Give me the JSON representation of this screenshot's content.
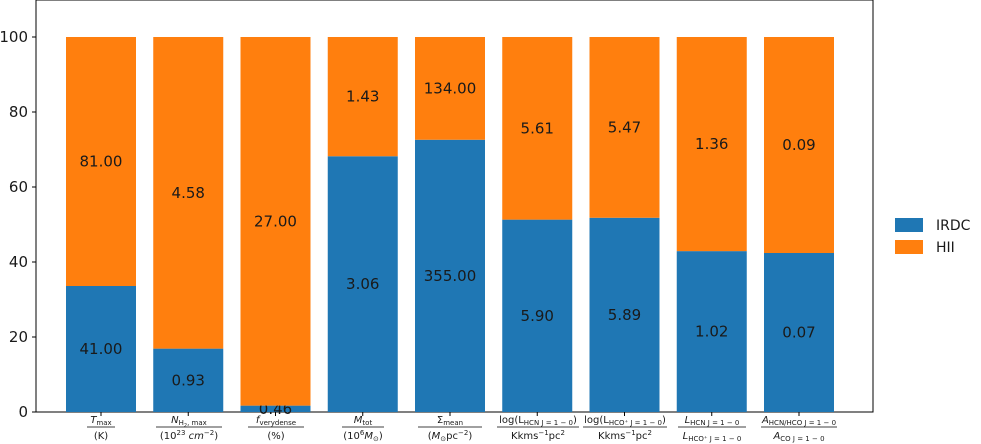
{
  "chart_data": {
    "type": "bar",
    "stacked": true,
    "normalized_to": 100,
    "title": "",
    "xlabel": "",
    "ylabel": "",
    "ylim": [
      0,
      100
    ],
    "yticks": [
      "0",
      "20",
      "40",
      "60",
      "80",
      "100"
    ],
    "legend_position": "right",
    "categories": [
      {
        "top": "T_max",
        "bottom": "(K)"
      },
      {
        "top": "N_H2,max",
        "bottom": "(10^23 cm^-2)"
      },
      {
        "top": "f_verydense",
        "bottom": "(%)"
      },
      {
        "top": "M_tot",
        "bottom": "(10^6 M_sun)"
      },
      {
        "top": "Sigma_mean",
        "bottom": "(M_sun pc^-2)"
      },
      {
        "top": "log(L_HCN J=1-0)",
        "bottom": "Kkms^-1 pc^2"
      },
      {
        "top": "log(L_HCO+ J=1-0)",
        "bottom": "Kkms^-1 pc^2"
      },
      {
        "top": "L_HCN J=1-0",
        "bottom": "L_HCO+ J=1-0"
      },
      {
        "top": "A_HCN/HCO J=1-0",
        "bottom": "A_CO J=1-0"
      }
    ],
    "series": [
      {
        "name": "IRDC",
        "color": "#1f77b4",
        "percent": [
          33.6,
          16.9,
          1.7,
          68.2,
          72.6,
          51.3,
          51.8,
          42.9,
          42.4
        ],
        "labels": [
          "41.00",
          "0.93",
          "0.46",
          "3.06",
          "355.00",
          "5.90",
          "5.89",
          "1.02",
          "0.07"
        ]
      },
      {
        "name": "HII",
        "color": "#ff7f0e",
        "percent": [
          66.4,
          83.1,
          98.3,
          31.8,
          27.4,
          48.7,
          48.2,
          57.1,
          57.6
        ],
        "labels": [
          "81.00",
          "4.58",
          "27.00",
          "1.43",
          "134.00",
          "5.61",
          "5.47",
          "1.36",
          "0.09"
        ]
      }
    ]
  }
}
